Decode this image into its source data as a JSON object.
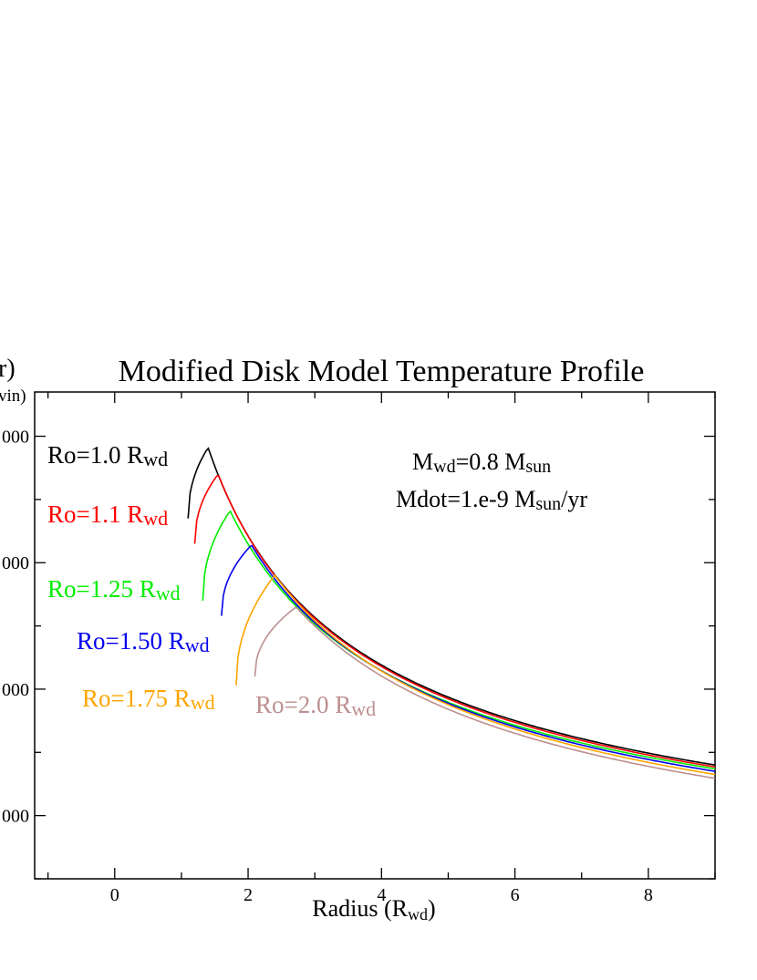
{
  "chart_data": {
    "type": "line",
    "title": "Modified Disk Model Temperature Profile",
    "xlabel": {
      "main": "Radius  (R",
      "sub": "wd",
      "end": ")"
    },
    "ylabel": {
      "main": "r)",
      "sub": "vin)"
    },
    "xlim": [
      -1.2,
      9
    ],
    "ylim": [
      5000,
      43500
    ],
    "x_ticks": [
      0,
      2,
      4,
      6,
      8
    ],
    "x_tick_labels": [
      "0",
      "2",
      "4",
      "6",
      "8"
    ],
    "y_ticks": [
      10000,
      20000,
      30000,
      40000
    ],
    "y_tick_labels": [
      "000",
      "000",
      "000",
      "000"
    ],
    "annotations": [
      {
        "main": "M",
        "sub": "wd",
        "rest": "=0.8 M",
        "sub2": "sun",
        "tail": ""
      },
      {
        "main": "Mdot=1.e-9 M",
        "sub": "sun",
        "rest": "/yr",
        "sub2": "",
        "tail": ""
      }
    ],
    "series": [
      {
        "label_main": "Ro=1.0 R",
        "label_sub": "wd",
        "color": "#000000",
        "r0": 1.1,
        "tpeak": 39100,
        "rpeak": 1.4,
        "tstart": 33500,
        "t9": 14000
      },
      {
        "label_main": "Ro=1.1 R",
        "label_sub": "wd",
        "color": "#ff0000",
        "r0": 1.2,
        "tpeak": 37000,
        "rpeak": 1.55,
        "tstart": 31500,
        "t9": 13850
      },
      {
        "label_main": "Ro=1.25 R",
        "label_sub": "wd",
        "color": "#00ee00",
        "r0": 1.32,
        "tpeak": 34100,
        "rpeak": 1.73,
        "tstart": 27000,
        "t9": 13700
      },
      {
        "label_main": "Ro=1.50 R",
        "label_sub": "wd",
        "color": "#0000ee",
        "r0": 1.6,
        "tpeak": 31400,
        "rpeak": 2.05,
        "tstart": 25800,
        "t9": 13500
      },
      {
        "label_main": "Ro=1.75 R",
        "label_sub": "wd",
        "color": "#ffa500",
        "r0": 1.82,
        "tpeak": 29000,
        "rpeak": 2.4,
        "tstart": 20300,
        "t9": 13250
      },
      {
        "label_main": "Ro=2.0 R",
        "label_sub": "wd",
        "color": "#bc8f8f",
        "r0": 2.1,
        "tpeak": 26500,
        "rpeak": 2.72,
        "tstart": 21000,
        "t9": 12950
      }
    ]
  }
}
